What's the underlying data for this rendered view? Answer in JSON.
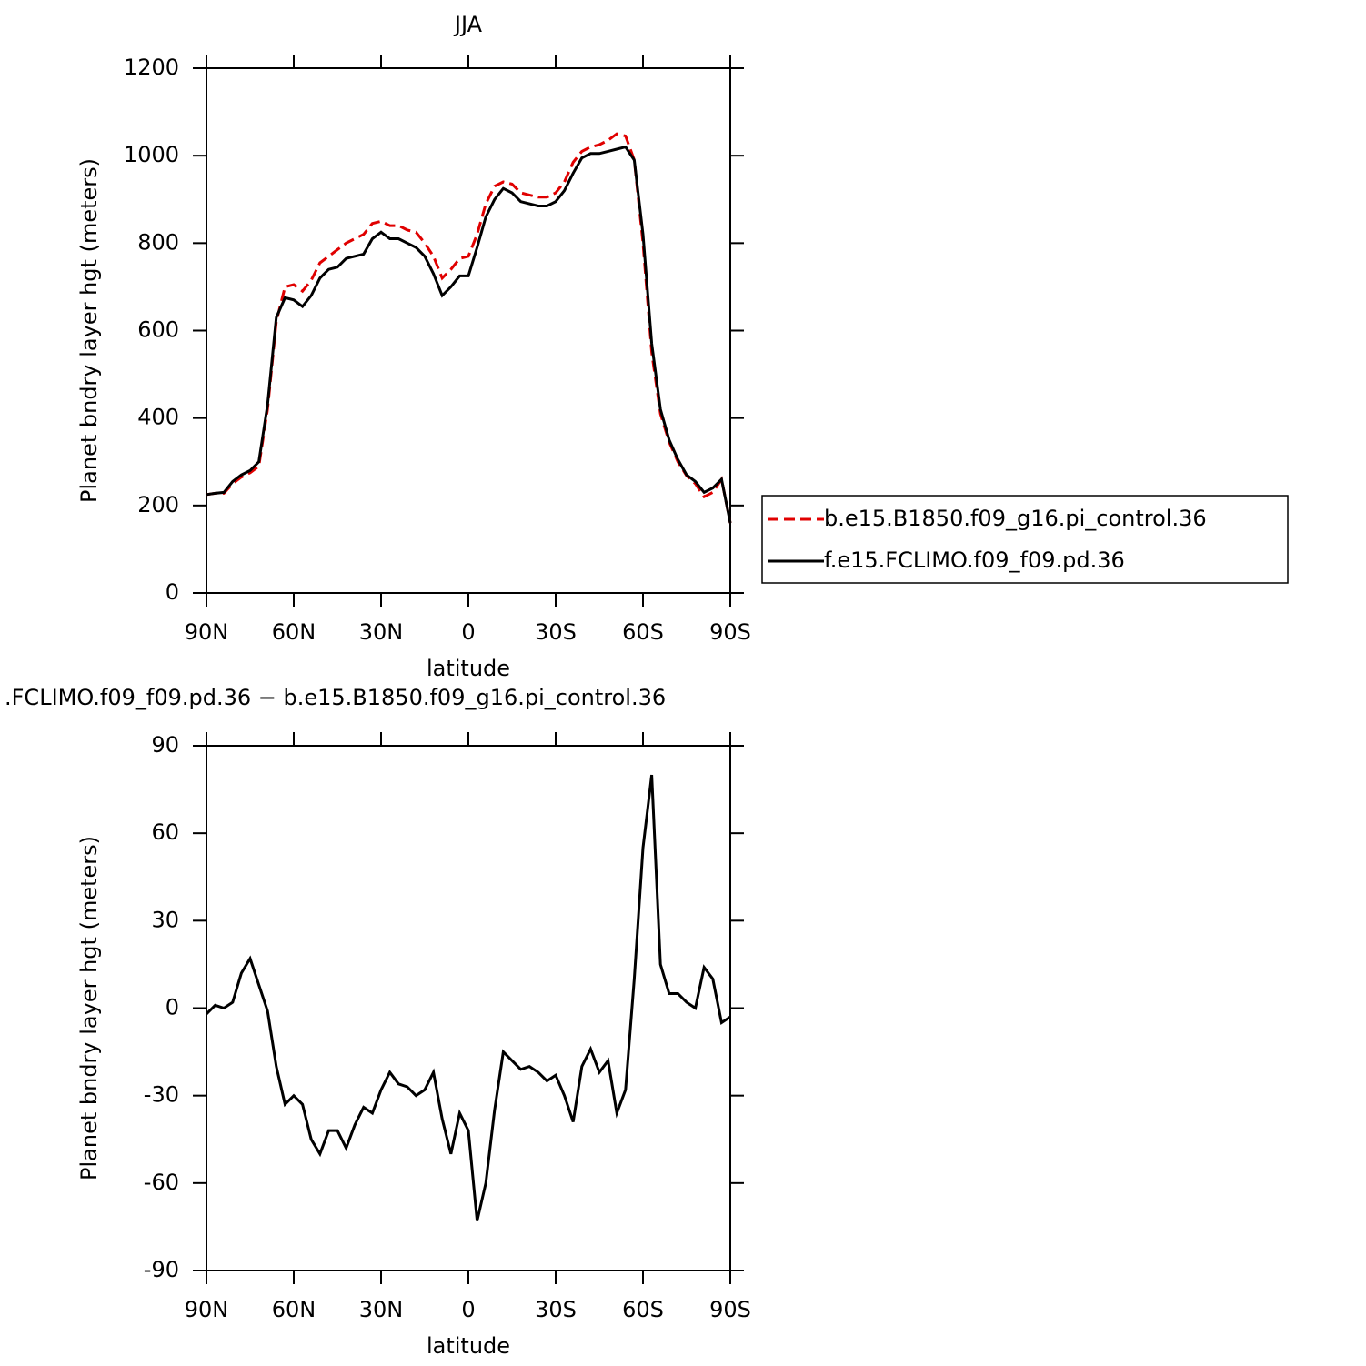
{
  "chart_data": [
    {
      "type": "line",
      "title": "JJA",
      "xlabel": "latitude",
      "ylabel": "Planet bndry layer hgt (meters)",
      "x": [
        90,
        87,
        84,
        81,
        78,
        75,
        72,
        69,
        66,
        63,
        60,
        57,
        54,
        51,
        48,
        45,
        42,
        39,
        36,
        33,
        30,
        27,
        24,
        21,
        18,
        15,
        12,
        9,
        6,
        3,
        0,
        -3,
        -6,
        -9,
        -12,
        -15,
        -18,
        -21,
        -24,
        -27,
        -30,
        -33,
        -36,
        -39,
        -42,
        -45,
        -48,
        -51,
        -54,
        -57,
        -60,
        -63,
        -66,
        -69,
        -72,
        -75,
        -78,
        -81,
        -84,
        -87,
        -90
      ],
      "xlim": [
        90,
        -90
      ],
      "xticks": [
        {
          "value": 90,
          "label": "90N"
        },
        {
          "value": 60,
          "label": "60N"
        },
        {
          "value": 30,
          "label": "30N"
        },
        0,
        {
          "value": -30,
          "label": "30S"
        },
        {
          "value": -60,
          "label": "60S"
        },
        {
          "value": -90,
          "label": "90S"
        }
      ],
      "ylim": [
        0,
        1200
      ],
      "yticks": [
        0,
        200,
        400,
        600,
        800,
        1000,
        1200
      ],
      "legend": "right",
      "series": [
        {
          "name": "b.e15.B1850.f09_g16.pi_control.36",
          "color": "#e00000",
          "dash": "dashed",
          "values": [
            225,
            228,
            228,
            250,
            265,
            275,
            290,
            420,
            620,
            700,
            705,
            690,
            715,
            755,
            770,
            785,
            800,
            810,
            820,
            845,
            850,
            840,
            840,
            830,
            825,
            800,
            770,
            720,
            740,
            765,
            770,
            820,
            890,
            930,
            940,
            935,
            915,
            910,
            905,
            905,
            915,
            940,
            985,
            1010,
            1020,
            1025,
            1035,
            1050,
            1045,
            990,
            800,
            550,
            410,
            345,
            300,
            268,
            250,
            220,
            230,
            260,
            160
          ]
        },
        {
          "name": "f.e15.FCLIMO.f09_f09.pd.36",
          "color": "#000000",
          "dash": "solid",
          "values": [
            225,
            228,
            230,
            255,
            270,
            280,
            300,
            430,
            630,
            675,
            670,
            655,
            680,
            720,
            740,
            745,
            765,
            770,
            775,
            810,
            825,
            810,
            810,
            800,
            790,
            770,
            730,
            680,
            700,
            725,
            725,
            790,
            860,
            900,
            925,
            915,
            895,
            890,
            885,
            885,
            895,
            920,
            960,
            995,
            1005,
            1005,
            1010,
            1015,
            1020,
            990,
            820,
            570,
            420,
            350,
            305,
            270,
            255,
            230,
            240,
            260,
            160
          ]
        }
      ]
    },
    {
      "type": "line",
      "title": ".FCLIMO.f09_f09.pd.36 − b.e15.B1850.f09_g16.pi_control.36",
      "xlabel": "latitude",
      "ylabel": "Planet bndry layer hgt (meters)",
      "x": [
        90,
        87,
        84,
        81,
        78,
        75,
        72,
        69,
        66,
        63,
        60,
        57,
        54,
        51,
        48,
        45,
        42,
        39,
        36,
        33,
        30,
        27,
        24,
        21,
        18,
        15,
        12,
        9,
        6,
        3,
        0,
        -3,
        -6,
        -9,
        -12,
        -15,
        -18,
        -21,
        -24,
        -27,
        -30,
        -33,
        -36,
        -39,
        -42,
        -45,
        -48,
        -51,
        -54,
        -57,
        -60,
        -63,
        -66,
        -69,
        -72,
        -75,
        -78,
        -81,
        -84,
        -87,
        -90
      ],
      "xlim": [
        90,
        -90
      ],
      "xticks": [
        {
          "value": 90,
          "label": "90N"
        },
        {
          "value": 60,
          "label": "60N"
        },
        {
          "value": 30,
          "label": "30N"
        },
        0,
        {
          "value": -30,
          "label": "30S"
        },
        {
          "value": -60,
          "label": "60S"
        },
        {
          "value": -90,
          "label": "90S"
        }
      ],
      "ylim": [
        -90,
        90
      ],
      "yticks": [
        -90,
        -60,
        -30,
        0,
        30,
        60,
        90
      ],
      "series": [
        {
          "color": "#000000",
          "dash": "solid",
          "values": [
            -2,
            1,
            0,
            2,
            12,
            17,
            8,
            -1,
            -20,
            -33,
            -30,
            -33,
            -45,
            -50,
            -42,
            -42,
            -48,
            -40,
            -34,
            -36,
            -28,
            -22,
            -26,
            -27,
            -30,
            -28,
            -22,
            -38,
            -50,
            -36,
            -42,
            -73,
            -60,
            -35,
            -15,
            -18,
            -21,
            -20,
            -22,
            -25,
            -23,
            -30,
            -39,
            -20,
            -14,
            -22,
            -18,
            -36,
            -28,
            10,
            55,
            80,
            15,
            5,
            5,
            2,
            0,
            14,
            10,
            -5,
            -3
          ]
        }
      ]
    }
  ]
}
